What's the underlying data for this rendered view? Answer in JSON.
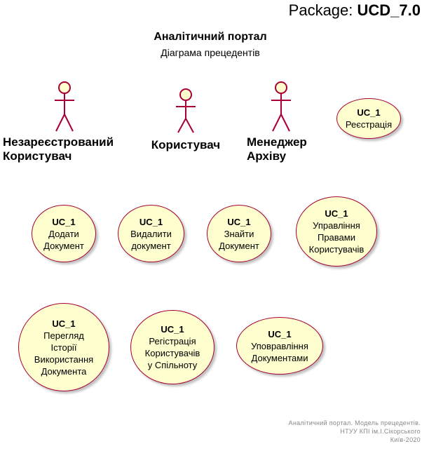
{
  "header": {
    "prefix": "Package:",
    "name": "UCD_7.0"
  },
  "title": "Аналітичний портал",
  "subtitle": "Діаграма прецедентів",
  "actors": [
    {
      "line1": "Незареєстрований",
      "line2": "Користувач"
    },
    {
      "line1": "Користувач",
      "line2": ""
    },
    {
      "line1": "Менеджер",
      "line2": "Архіву"
    }
  ],
  "usecases": [
    {
      "id": "UC_1",
      "name": "Реєстрація"
    },
    {
      "id": "UC_1",
      "name": "Додати\nДокумент"
    },
    {
      "id": "UC_1",
      "name": "Видалити\nдокумент"
    },
    {
      "id": "UC_1",
      "name": "Знайти\nДокумент"
    },
    {
      "id": "UC_1",
      "name": "Управління\nПравами\nКористувачів"
    },
    {
      "id": "UC_1",
      "name": "Перегляд\nІсторії\nВикористання\nДокумента"
    },
    {
      "id": "UC_1",
      "name": "Регістрація\nКористувачів\nу Спільноту"
    },
    {
      "id": "UC_1",
      "name": "Уповравління\nДокументами"
    }
  ],
  "footer": {
    "line1": "Аналітичний портал. Модель прецедентів.",
    "line2": "НТУУ КПІ ім.І.Сікорського",
    "line3": "Київ-2020"
  },
  "colors": {
    "usecase_fill": "#FEFECE",
    "usecase_border": "#A80036",
    "actor_fill": "#FEFECE",
    "actor_stroke": "#A80036",
    "footer_text": "#888888"
  }
}
